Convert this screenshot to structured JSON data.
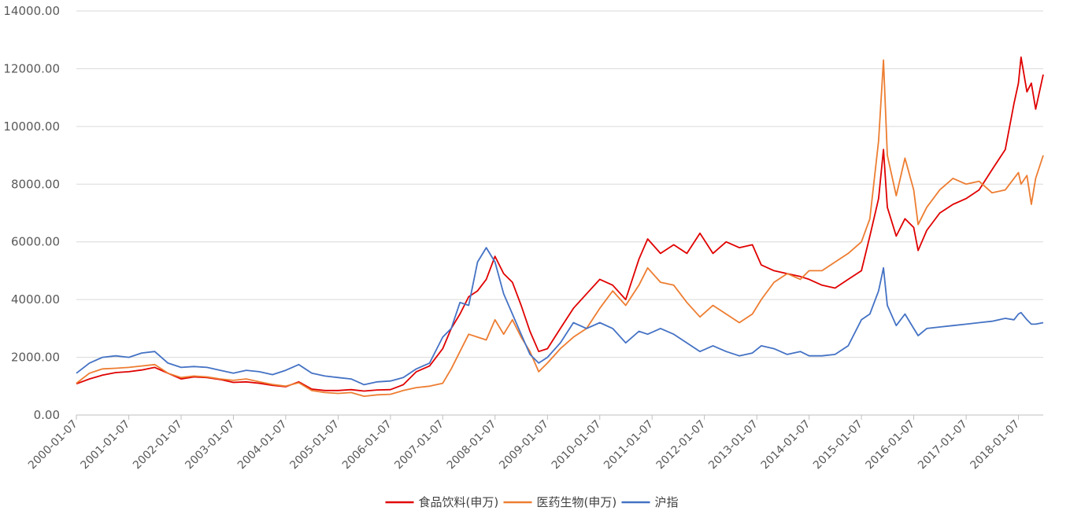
{
  "chart_data": {
    "type": "line",
    "title": "",
    "xlabel": "",
    "ylabel": "",
    "ylim": [
      0,
      14000
    ],
    "y_ticks": [
      "0.00",
      "2000.00",
      "4000.00",
      "6000.00",
      "8000.00",
      "10000.00",
      "12000.00",
      "14000.00"
    ],
    "x_ticks": [
      "2000-01-07",
      "2001-01-07",
      "2002-01-07",
      "2003-01-07",
      "2004-01-07",
      "2005-01-07",
      "2006-01-07",
      "2007-01-07",
      "2008-01-07",
      "2009-01-07",
      "2010-01-07",
      "2011-01-07",
      "2012-01-07",
      "2013-01-07",
      "2014-01-07",
      "2015-01-07",
      "2016-01-07",
      "2017-01-07",
      "2018-01-07"
    ],
    "xlim": [
      "2000-01-07",
      "2018-06-29"
    ],
    "grid": "horizontal",
    "legend": "bottom",
    "series": [
      {
        "name": "食品饮料(申万)",
        "color": "#e00000",
        "points": [
          [
            "2000-01-07",
            1080
          ],
          [
            "2000-04-07",
            1250
          ],
          [
            "2000-07-07",
            1380
          ],
          [
            "2000-10-07",
            1470
          ],
          [
            "2001-01-07",
            1500
          ],
          [
            "2001-04-07",
            1560
          ],
          [
            "2001-07-07",
            1650
          ],
          [
            "2001-10-07",
            1450
          ],
          [
            "2002-01-07",
            1250
          ],
          [
            "2002-04-07",
            1320
          ],
          [
            "2002-07-07",
            1300
          ],
          [
            "2002-10-07",
            1230
          ],
          [
            "2003-01-07",
            1130
          ],
          [
            "2003-04-07",
            1150
          ],
          [
            "2003-07-07",
            1100
          ],
          [
            "2003-10-07",
            1030
          ],
          [
            "2004-01-07",
            980
          ],
          [
            "2004-04-07",
            1150
          ],
          [
            "2004-07-07",
            900
          ],
          [
            "2004-10-07",
            850
          ],
          [
            "2005-01-07",
            850
          ],
          [
            "2005-04-07",
            880
          ],
          [
            "2005-07-07",
            830
          ],
          [
            "2005-10-07",
            870
          ],
          [
            "2006-01-07",
            880
          ],
          [
            "2006-04-07",
            1050
          ],
          [
            "2006-07-07",
            1500
          ],
          [
            "2006-10-07",
            1700
          ],
          [
            "2007-01-07",
            2300
          ],
          [
            "2007-03-07",
            3000
          ],
          [
            "2007-05-07",
            3500
          ],
          [
            "2007-07-07",
            4100
          ],
          [
            "2007-09-07",
            4300
          ],
          [
            "2007-11-07",
            4700
          ],
          [
            "2008-01-07",
            5500
          ],
          [
            "2008-03-07",
            4900
          ],
          [
            "2008-05-07",
            4600
          ],
          [
            "2008-07-07",
            3800
          ],
          [
            "2008-09-07",
            2900
          ],
          [
            "2008-11-07",
            2200
          ],
          [
            "2009-01-07",
            2300
          ],
          [
            "2009-04-07",
            3000
          ],
          [
            "2009-07-07",
            3700
          ],
          [
            "2009-10-07",
            4200
          ],
          [
            "2010-01-07",
            4700
          ],
          [
            "2010-04-07",
            4500
          ],
          [
            "2010-07-07",
            4000
          ],
          [
            "2010-10-07",
            5400
          ],
          [
            "2010-12-07",
            6100
          ],
          [
            "2011-03-07",
            5600
          ],
          [
            "2011-06-07",
            5900
          ],
          [
            "2011-09-07",
            5600
          ],
          [
            "2011-12-07",
            6300
          ],
          [
            "2012-03-07",
            5600
          ],
          [
            "2012-06-07",
            6000
          ],
          [
            "2012-09-07",
            5800
          ],
          [
            "2012-12-07",
            5900
          ],
          [
            "2013-02-07",
            5200
          ],
          [
            "2013-05-07",
            5000
          ],
          [
            "2013-08-07",
            4900
          ],
          [
            "2013-11-07",
            4800
          ],
          [
            "2014-01-07",
            4700
          ],
          [
            "2014-04-07",
            4500
          ],
          [
            "2014-07-07",
            4400
          ],
          [
            "2014-10-07",
            4700
          ],
          [
            "2015-01-07",
            5000
          ],
          [
            "2015-03-07",
            6200
          ],
          [
            "2015-05-07",
            7500
          ],
          [
            "2015-06-10",
            9200
          ],
          [
            "2015-07-07",
            7200
          ],
          [
            "2015-09-07",
            6200
          ],
          [
            "2015-11-07",
            6800
          ],
          [
            "2016-01-07",
            6500
          ],
          [
            "2016-02-07",
            5700
          ],
          [
            "2016-04-07",
            6400
          ],
          [
            "2016-07-07",
            7000
          ],
          [
            "2016-10-07",
            7300
          ],
          [
            "2017-01-07",
            7500
          ],
          [
            "2017-04-07",
            7800
          ],
          [
            "2017-07-07",
            8500
          ],
          [
            "2017-10-07",
            9200
          ],
          [
            "2017-12-07",
            10800
          ],
          [
            "2018-01-07",
            11500
          ],
          [
            "2018-01-25",
            12400
          ],
          [
            "2018-03-07",
            11200
          ],
          [
            "2018-04-07",
            11500
          ],
          [
            "2018-05-07",
            10600
          ],
          [
            "2018-06-29",
            11800
          ]
        ]
      },
      {
        "name": "医药生物(申万)",
        "color": "#ed7d31",
        "points": [
          [
            "2000-01-07",
            1100
          ],
          [
            "2000-04-07",
            1450
          ],
          [
            "2000-07-07",
            1600
          ],
          [
            "2000-10-07",
            1620
          ],
          [
            "2001-01-07",
            1650
          ],
          [
            "2001-04-07",
            1700
          ],
          [
            "2001-07-07",
            1750
          ],
          [
            "2001-10-07",
            1450
          ],
          [
            "2002-01-07",
            1300
          ],
          [
            "2002-04-07",
            1350
          ],
          [
            "2002-07-07",
            1320
          ],
          [
            "2002-10-07",
            1250
          ],
          [
            "2003-01-07",
            1200
          ],
          [
            "2003-04-07",
            1250
          ],
          [
            "2003-07-07",
            1150
          ],
          [
            "2003-10-07",
            1060
          ],
          [
            "2004-01-07",
            1000
          ],
          [
            "2004-04-07",
            1120
          ],
          [
            "2004-07-07",
            850
          ],
          [
            "2004-10-07",
            780
          ],
          [
            "2005-01-07",
            750
          ],
          [
            "2005-04-07",
            780
          ],
          [
            "2005-07-07",
            650
          ],
          [
            "2005-10-07",
            700
          ],
          [
            "2006-01-07",
            720
          ],
          [
            "2006-04-07",
            850
          ],
          [
            "2006-07-07",
            950
          ],
          [
            "2006-10-07",
            1000
          ],
          [
            "2007-01-07",
            1100
          ],
          [
            "2007-03-07",
            1600
          ],
          [
            "2007-05-07",
            2200
          ],
          [
            "2007-07-07",
            2800
          ],
          [
            "2007-09-07",
            2700
          ],
          [
            "2007-11-07",
            2600
          ],
          [
            "2008-01-07",
            3300
          ],
          [
            "2008-03-07",
            2800
          ],
          [
            "2008-05-07",
            3300
          ],
          [
            "2008-07-07",
            2700
          ],
          [
            "2008-09-07",
            2200
          ],
          [
            "2008-11-07",
            1500
          ],
          [
            "2009-01-07",
            1800
          ],
          [
            "2009-04-07",
            2300
          ],
          [
            "2009-07-07",
            2700
          ],
          [
            "2009-10-07",
            3000
          ],
          [
            "2010-01-07",
            3700
          ],
          [
            "2010-04-07",
            4300
          ],
          [
            "2010-07-07",
            3800
          ],
          [
            "2010-10-07",
            4500
          ],
          [
            "2010-12-07",
            5100
          ],
          [
            "2011-03-07",
            4600
          ],
          [
            "2011-06-07",
            4500
          ],
          [
            "2011-09-07",
            3900
          ],
          [
            "2011-12-07",
            3400
          ],
          [
            "2012-03-07",
            3800
          ],
          [
            "2012-06-07",
            3500
          ],
          [
            "2012-09-07",
            3200
          ],
          [
            "2012-12-07",
            3500
          ],
          [
            "2013-02-07",
            4000
          ],
          [
            "2013-05-07",
            4600
          ],
          [
            "2013-08-07",
            4900
          ],
          [
            "2013-11-07",
            4700
          ],
          [
            "2014-01-07",
            5000
          ],
          [
            "2014-04-07",
            5000
          ],
          [
            "2014-07-07",
            5300
          ],
          [
            "2014-10-07",
            5600
          ],
          [
            "2015-01-07",
            6000
          ],
          [
            "2015-03-07",
            6800
          ],
          [
            "2015-05-07",
            9500
          ],
          [
            "2015-06-10",
            12300
          ],
          [
            "2015-07-07",
            9000
          ],
          [
            "2015-09-07",
            7600
          ],
          [
            "2015-11-07",
            8900
          ],
          [
            "2016-01-07",
            7800
          ],
          [
            "2016-02-07",
            6600
          ],
          [
            "2016-04-07",
            7200
          ],
          [
            "2016-07-07",
            7800
          ],
          [
            "2016-10-07",
            8200
          ],
          [
            "2017-01-07",
            8000
          ],
          [
            "2017-04-07",
            8100
          ],
          [
            "2017-07-07",
            7700
          ],
          [
            "2017-10-07",
            7800
          ],
          [
            "2017-12-07",
            8200
          ],
          [
            "2018-01-07",
            8400
          ],
          [
            "2018-01-25",
            8000
          ],
          [
            "2018-03-07",
            8300
          ],
          [
            "2018-04-07",
            7300
          ],
          [
            "2018-05-07",
            8200
          ],
          [
            "2018-06-29",
            9000
          ]
        ]
      },
      {
        "name": "沪指",
        "color": "#4472c4",
        "points": [
          [
            "2000-01-07",
            1450
          ],
          [
            "2000-04-07",
            1800
          ],
          [
            "2000-07-07",
            2000
          ],
          [
            "2000-10-07",
            2050
          ],
          [
            "2001-01-07",
            2000
          ],
          [
            "2001-04-07",
            2150
          ],
          [
            "2001-07-07",
            2200
          ],
          [
            "2001-10-07",
            1800
          ],
          [
            "2002-01-07",
            1650
          ],
          [
            "2002-04-07",
            1680
          ],
          [
            "2002-07-07",
            1650
          ],
          [
            "2002-10-07",
            1550
          ],
          [
            "2003-01-07",
            1450
          ],
          [
            "2003-04-07",
            1550
          ],
          [
            "2003-07-07",
            1500
          ],
          [
            "2003-10-07",
            1400
          ],
          [
            "2004-01-07",
            1550
          ],
          [
            "2004-04-07",
            1750
          ],
          [
            "2004-07-07",
            1450
          ],
          [
            "2004-10-07",
            1350
          ],
          [
            "2005-01-07",
            1300
          ],
          [
            "2005-04-07",
            1250
          ],
          [
            "2005-07-07",
            1050
          ],
          [
            "2005-10-07",
            1150
          ],
          [
            "2006-01-07",
            1180
          ],
          [
            "2006-04-07",
            1300
          ],
          [
            "2006-07-07",
            1600
          ],
          [
            "2006-10-07",
            1800
          ],
          [
            "2007-01-07",
            2700
          ],
          [
            "2007-03-07",
            3000
          ],
          [
            "2007-05-07",
            3900
          ],
          [
            "2007-07-07",
            3800
          ],
          [
            "2007-09-07",
            5300
          ],
          [
            "2007-11-07",
            5800
          ],
          [
            "2008-01-07",
            5300
          ],
          [
            "2008-03-07",
            4200
          ],
          [
            "2008-05-07",
            3500
          ],
          [
            "2008-07-07",
            2800
          ],
          [
            "2008-09-07",
            2100
          ],
          [
            "2008-11-07",
            1800
          ],
          [
            "2009-01-07",
            2000
          ],
          [
            "2009-04-07",
            2500
          ],
          [
            "2009-07-07",
            3200
          ],
          [
            "2009-10-07",
            3000
          ],
          [
            "2010-01-07",
            3200
          ],
          [
            "2010-04-07",
            3000
          ],
          [
            "2010-07-07",
            2500
          ],
          [
            "2010-10-07",
            2900
          ],
          [
            "2010-12-07",
            2800
          ],
          [
            "2011-03-07",
            3000
          ],
          [
            "2011-06-07",
            2800
          ],
          [
            "2011-09-07",
            2500
          ],
          [
            "2011-12-07",
            2200
          ],
          [
            "2012-03-07",
            2400
          ],
          [
            "2012-06-07",
            2200
          ],
          [
            "2012-09-07",
            2050
          ],
          [
            "2012-12-07",
            2150
          ],
          [
            "2013-02-07",
            2400
          ],
          [
            "2013-05-07",
            2300
          ],
          [
            "2013-08-07",
            2100
          ],
          [
            "2013-11-07",
            2200
          ],
          [
            "2014-01-07",
            2050
          ],
          [
            "2014-04-07",
            2050
          ],
          [
            "2014-07-07",
            2100
          ],
          [
            "2014-10-07",
            2400
          ],
          [
            "2015-01-07",
            3300
          ],
          [
            "2015-03-07",
            3500
          ],
          [
            "2015-05-07",
            4300
          ],
          [
            "2015-06-10",
            5100
          ],
          [
            "2015-07-07",
            3800
          ],
          [
            "2015-09-07",
            3100
          ],
          [
            "2015-11-07",
            3500
          ],
          [
            "2016-01-07",
            3000
          ],
          [
            "2016-02-07",
            2750
          ],
          [
            "2016-04-07",
            3000
          ],
          [
            "2016-07-07",
            3050
          ],
          [
            "2016-10-07",
            3100
          ],
          [
            "2017-01-07",
            3150
          ],
          [
            "2017-04-07",
            3200
          ],
          [
            "2017-07-07",
            3250
          ],
          [
            "2017-10-07",
            3350
          ],
          [
            "2017-12-07",
            3300
          ],
          [
            "2018-01-07",
            3500
          ],
          [
            "2018-01-25",
            3550
          ],
          [
            "2018-03-07",
            3300
          ],
          [
            "2018-04-07",
            3150
          ],
          [
            "2018-05-07",
            3150
          ],
          [
            "2018-06-29",
            3200
          ]
        ]
      }
    ]
  }
}
